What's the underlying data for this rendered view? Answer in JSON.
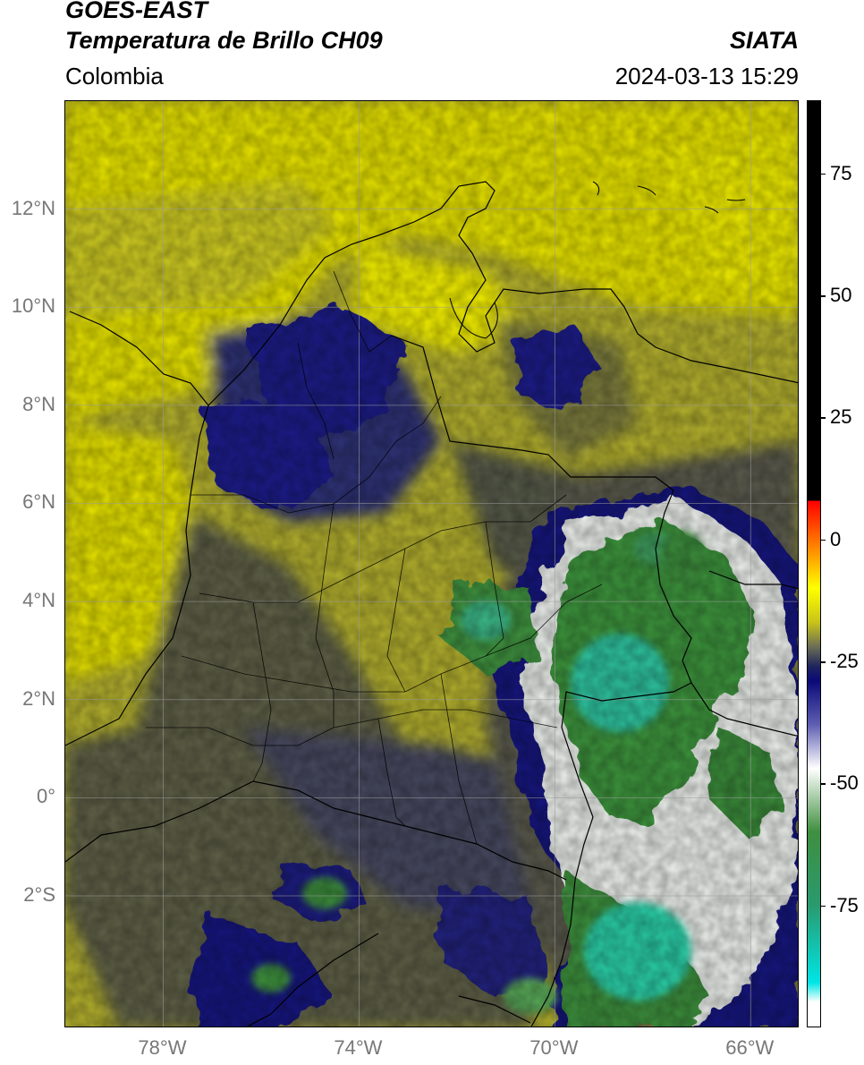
{
  "header": {
    "satellite": "GOES-EAST",
    "product": "Temperatura de Brillo CH09",
    "org": "SIATA",
    "region": "Colombia",
    "datetime": "2024-03-13 15:29"
  },
  "map": {
    "lon_range": [
      -80,
      -65
    ],
    "lat_range": [
      -4.7,
      14.2
    ],
    "lat_ticks": [
      {
        "label": "12°N",
        "value": 12
      },
      {
        "label": "10°N",
        "value": 10
      },
      {
        "label": "8°N",
        "value": 8
      },
      {
        "label": "6°N",
        "value": 6
      },
      {
        "label": "4°N",
        "value": 4
      },
      {
        "label": "2°N",
        "value": 2
      },
      {
        "label": "0°",
        "value": 0
      },
      {
        "label": "2°S",
        "value": -2
      }
    ],
    "lon_ticks": [
      {
        "label": "78°W",
        "value": -78
      },
      {
        "label": "74°W",
        "value": -74
      },
      {
        "label": "70°W",
        "value": -70
      },
      {
        "label": "66°W",
        "value": -66
      }
    ],
    "gridlines": true,
    "colors": {
      "warm_yellow": "#f2ee00",
      "olive": "#b7b32a",
      "slate": "#4a4e62",
      "navy": "#12127a",
      "white": "#ffffff",
      "green": "#3a8f3a",
      "cyan": "#25d2b0",
      "border": "#000000"
    }
  },
  "colorbar": {
    "unit_range": [
      -100,
      90
    ],
    "ticks": [
      {
        "label": "75",
        "value": 75
      },
      {
        "label": "50",
        "value": 50
      },
      {
        "label": "25",
        "value": 25
      },
      {
        "label": "0",
        "value": 0
      },
      {
        "label": "-25",
        "value": -25
      },
      {
        "label": "-50",
        "value": -50
      },
      {
        "label": "-75",
        "value": -75
      }
    ],
    "stops": [
      {
        "value": 90,
        "color": "#000000"
      },
      {
        "value": 8,
        "color": "#000000"
      },
      {
        "value": 7.9,
        "color": "#ff0000"
      },
      {
        "value": -3,
        "color": "#ff9900"
      },
      {
        "value": -10,
        "color": "#ffff00"
      },
      {
        "value": -17,
        "color": "#c8c419"
      },
      {
        "value": -22,
        "color": "#6c6e55"
      },
      {
        "value": -26,
        "color": "#20265c"
      },
      {
        "value": -29,
        "color": "#0a0a78"
      },
      {
        "value": -38,
        "color": "#5e5eb2"
      },
      {
        "value": -47,
        "color": "#ffffff"
      },
      {
        "value": -60,
        "color": "#3f8f3f"
      },
      {
        "value": -75,
        "color": "#2a9a6e"
      },
      {
        "value": -91,
        "color": "#00e5e5"
      },
      {
        "value": -95,
        "color": "#ffffff"
      },
      {
        "value": -100,
        "color": "#ffffff"
      }
    ]
  }
}
